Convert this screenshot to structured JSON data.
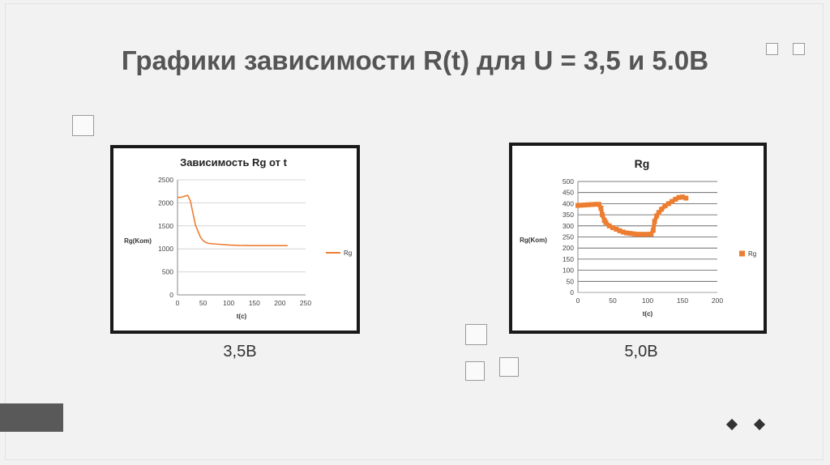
{
  "slide": {
    "title": "Графики зависимости R(t) для U = 3,5 и 5.0В",
    "captions": [
      "3,5В",
      "5,0В"
    ]
  },
  "colors": {
    "series": "#ED7D31",
    "title": "#555555"
  },
  "chart_data": [
    {
      "type": "line",
      "title": "Зависимость Rg от t",
      "xlabel": "t(c)",
      "ylabel": "Rg(Kom)",
      "xlim": [
        0,
        250
      ],
      "ylim": [
        0,
        2500
      ],
      "xticks": [
        "0",
        "50",
        "100",
        "150",
        "200",
        "250"
      ],
      "yticks": [
        "0",
        "500",
        "1000",
        "1500",
        "2000",
        "2500"
      ],
      "grid": true,
      "legend": "right",
      "series": [
        {
          "name": "Rg",
          "x": [
            0,
            5,
            10,
            15,
            20,
            25,
            30,
            35,
            40,
            45,
            50,
            55,
            60,
            70,
            80,
            100,
            120,
            150,
            180,
            215
          ],
          "y": [
            2120,
            2120,
            2130,
            2150,
            2160,
            2050,
            1780,
            1520,
            1380,
            1250,
            1180,
            1140,
            1120,
            1110,
            1100,
            1085,
            1075,
            1070,
            1070,
            1070
          ]
        }
      ]
    },
    {
      "type": "scatter",
      "title": "Rg",
      "xlabel": "t(c)",
      "ylabel": "Rg(Kom)",
      "xlim": [
        0,
        200
      ],
      "ylim": [
        0,
        500
      ],
      "xticks": [
        "0",
        "50",
        "100",
        "150",
        "200"
      ],
      "yticks": [
        "0",
        "50",
        "100",
        "150",
        "200",
        "250",
        "300",
        "350",
        "400",
        "450",
        "500"
      ],
      "grid": true,
      "legend": "right",
      "series": [
        {
          "name": "Rg",
          "x": [
            0,
            5,
            10,
            15,
            20,
            25,
            30,
            33,
            35,
            38,
            40,
            45,
            50,
            55,
            60,
            65,
            70,
            75,
            80,
            85,
            90,
            95,
            100,
            105,
            108,
            110,
            113,
            116,
            120,
            125,
            130,
            135,
            140,
            145,
            150,
            155
          ],
          "y": [
            392,
            393,
            394,
            395,
            396,
            397,
            397,
            380,
            350,
            325,
            315,
            300,
            292,
            285,
            278,
            272,
            268,
            266,
            264,
            262,
            262,
            262,
            262,
            263,
            280,
            320,
            345,
            360,
            375,
            390,
            400,
            410,
            420,
            428,
            430,
            425
          ]
        }
      ]
    }
  ]
}
